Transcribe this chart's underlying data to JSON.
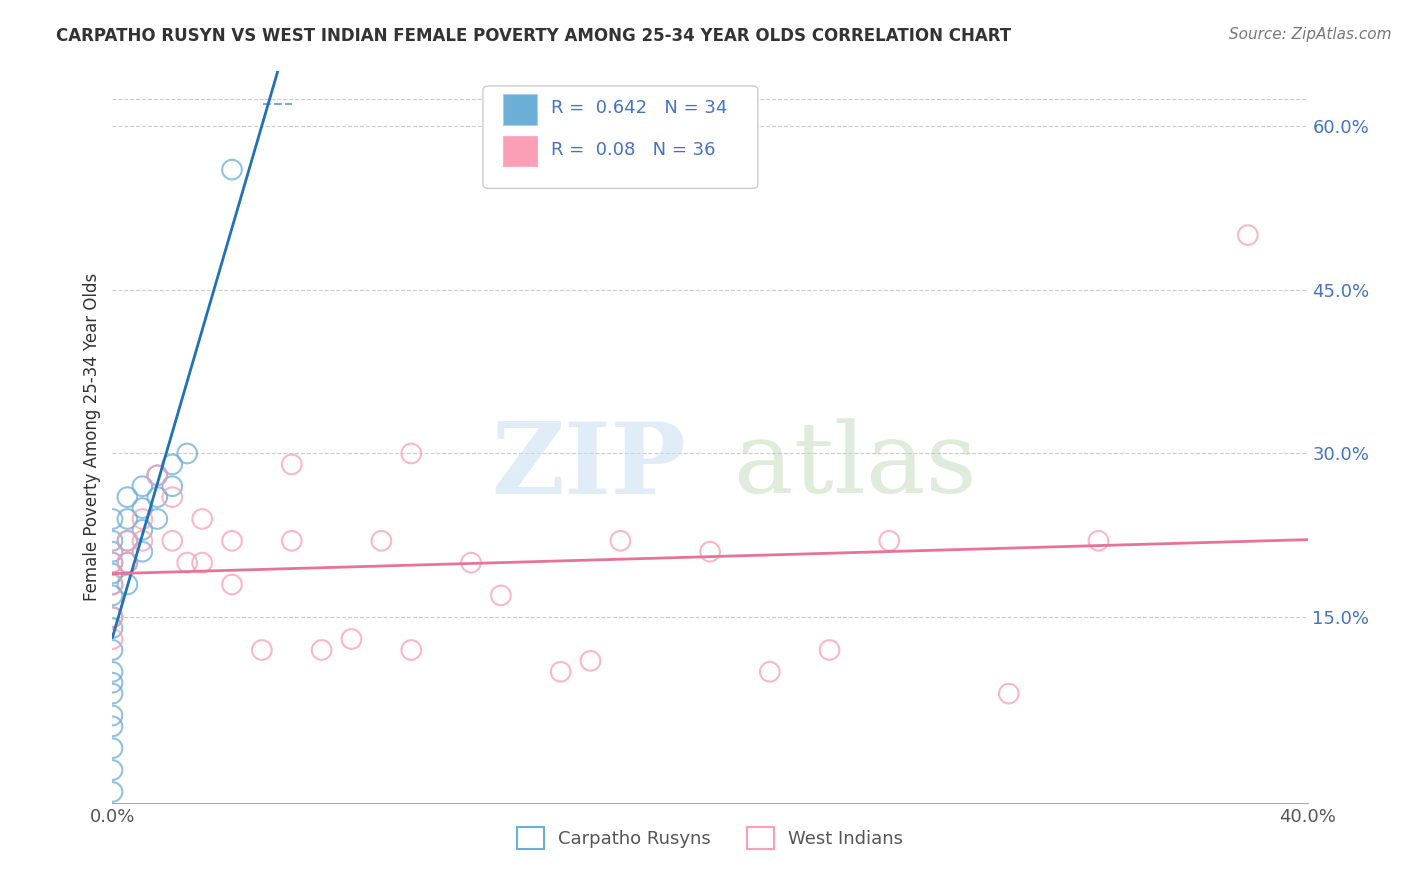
{
  "title": "CARPATHO RUSYN VS WEST INDIAN FEMALE POVERTY AMONG 25-34 YEAR OLDS CORRELATION CHART",
  "source": "Source: ZipAtlas.com",
  "ylabel": "Female Poverty Among 25-34 Year Olds",
  "xmin": 0.0,
  "xmax": 0.4,
  "ymin": -0.02,
  "ymax": 0.65,
  "x_ticks": [
    0.0,
    0.1,
    0.2,
    0.3,
    0.4
  ],
  "x_tick_labels": [
    "0.0%",
    "",
    "",
    "",
    "40.0%"
  ],
  "y_ticks_right": [
    0.15,
    0.3,
    0.45,
    0.6
  ],
  "y_tick_labels_right": [
    "15.0%",
    "30.0%",
    "45.0%",
    "60.0%"
  ],
  "legend_label1": "Carpatho Rusyns",
  "legend_label2": "West Indians",
  "R1": 0.642,
  "N1": 34,
  "R2": 0.08,
  "N2": 36,
  "color1": "#6baed6",
  "color2": "#fa9fb5",
  "trendline1_color": "#2171b5",
  "trendline2_color": "#e8729a",
  "background_color": "#ffffff",
  "grid_color": "#cccccc",
  "carpatho_x": [
    0.0,
    0.0,
    0.0,
    0.0,
    0.0,
    0.0,
    0.0,
    0.0,
    0.0,
    0.0,
    0.0,
    0.0,
    0.0,
    0.0,
    0.0,
    0.0,
    0.0,
    0.0,
    0.005,
    0.005,
    0.005,
    0.005,
    0.005,
    0.01,
    0.01,
    0.01,
    0.01,
    0.015,
    0.015,
    0.015,
    0.02,
    0.02,
    0.025,
    0.04
  ],
  "carpatho_y": [
    0.21,
    0.19,
    0.22,
    0.24,
    0.2,
    0.18,
    0.17,
    0.15,
    0.14,
    0.12,
    0.1,
    0.08,
    0.05,
    0.03,
    0.01,
    -0.01,
    0.06,
    0.09,
    0.22,
    0.24,
    0.26,
    0.2,
    0.18,
    0.27,
    0.25,
    0.23,
    0.21,
    0.28,
    0.26,
    0.24,
    0.29,
    0.27,
    0.3,
    0.56
  ],
  "westindian_x": [
    0.0,
    0.0,
    0.0,
    0.0,
    0.005,
    0.005,
    0.01,
    0.01,
    0.015,
    0.02,
    0.02,
    0.025,
    0.03,
    0.03,
    0.04,
    0.04,
    0.05,
    0.06,
    0.06,
    0.07,
    0.08,
    0.09,
    0.1,
    0.1,
    0.12,
    0.13,
    0.15,
    0.16,
    0.17,
    0.2,
    0.22,
    0.24,
    0.26,
    0.3,
    0.33,
    0.38
  ],
  "westindian_y": [
    0.2,
    0.18,
    0.15,
    0.13,
    0.22,
    0.2,
    0.24,
    0.22,
    0.28,
    0.26,
    0.22,
    0.2,
    0.24,
    0.2,
    0.22,
    0.18,
    0.12,
    0.29,
    0.22,
    0.12,
    0.13,
    0.22,
    0.12,
    0.3,
    0.2,
    0.17,
    0.1,
    0.11,
    0.22,
    0.21,
    0.1,
    0.12,
    0.22,
    0.08,
    0.22,
    0.5
  ]
}
